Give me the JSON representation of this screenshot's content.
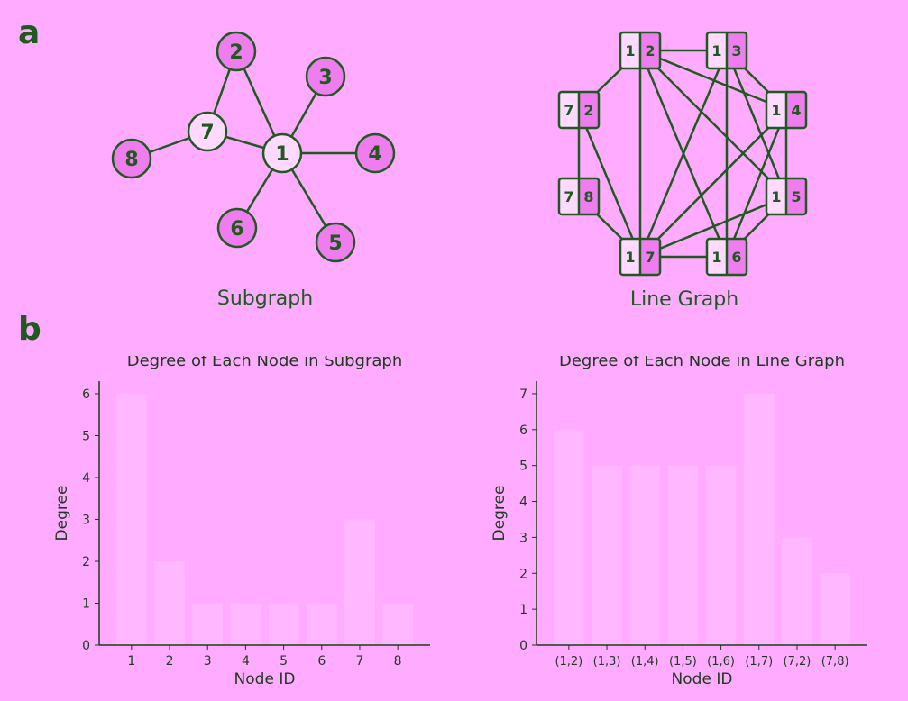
{
  "colors": {
    "background": "#FFABFF",
    "ink": "#1E5A1E",
    "node_fill_dark": "#F07DF0",
    "node_fill_light": "#FFD9FF",
    "bar_fill": "#FFB8FF",
    "axis_text": "#1E3A1E"
  },
  "panel_a": {
    "letter": "a",
    "subgraph": {
      "caption": "Subgraph",
      "nodes": [
        {
          "id": "1",
          "highlight": true
        },
        {
          "id": "2",
          "highlight": false
        },
        {
          "id": "3",
          "highlight": false
        },
        {
          "id": "4",
          "highlight": false
        },
        {
          "id": "5",
          "highlight": false
        },
        {
          "id": "6",
          "highlight": false
        },
        {
          "id": "7",
          "highlight": true
        },
        {
          "id": "8",
          "highlight": false
        }
      ],
      "edges": [
        [
          "1",
          "2"
        ],
        [
          "1",
          "3"
        ],
        [
          "1",
          "4"
        ],
        [
          "1",
          "5"
        ],
        [
          "1",
          "6"
        ],
        [
          "1",
          "7"
        ],
        [
          "2",
          "7"
        ],
        [
          "7",
          "8"
        ]
      ]
    },
    "line_graph": {
      "caption": "Line Graph",
      "nodes": [
        {
          "id": "12",
          "a": "1",
          "b": "2"
        },
        {
          "id": "13",
          "a": "1",
          "b": "3"
        },
        {
          "id": "14",
          "a": "1",
          "b": "4"
        },
        {
          "id": "15",
          "a": "1",
          "b": "5"
        },
        {
          "id": "16",
          "a": "1",
          "b": "6"
        },
        {
          "id": "17",
          "a": "1",
          "b": "7"
        },
        {
          "id": "72",
          "a": "7",
          "b": "2"
        },
        {
          "id": "78",
          "a": "7",
          "b": "8"
        }
      ],
      "edges": [
        [
          "12",
          "13"
        ],
        [
          "12",
          "14"
        ],
        [
          "12",
          "15"
        ],
        [
          "12",
          "16"
        ],
        [
          "12",
          "17"
        ],
        [
          "12",
          "72"
        ],
        [
          "13",
          "14"
        ],
        [
          "13",
          "15"
        ],
        [
          "13",
          "16"
        ],
        [
          "13",
          "17"
        ],
        [
          "14",
          "15"
        ],
        [
          "14",
          "16"
        ],
        [
          "14",
          "17"
        ],
        [
          "15",
          "16"
        ],
        [
          "15",
          "17"
        ],
        [
          "16",
          "17"
        ],
        [
          "17",
          "72"
        ],
        [
          "17",
          "78"
        ],
        [
          "72",
          "78"
        ]
      ]
    }
  },
  "panel_b": {
    "letter": "b"
  },
  "chart_data": [
    {
      "type": "bar",
      "title": "Degree of Each Node in Subgraph",
      "xlabel": "Node ID",
      "ylabel": "Degree",
      "categories": [
        "1",
        "2",
        "3",
        "4",
        "5",
        "6",
        "7",
        "8"
      ],
      "values": [
        6,
        2,
        1,
        1,
        1,
        1,
        3,
        1
      ],
      "ylim": [
        0,
        6.3
      ],
      "yticks": [
        0,
        1,
        2,
        3,
        4,
        5,
        6
      ],
      "grid": false
    },
    {
      "type": "bar",
      "title": "Degree of Each Node in Line Graph",
      "xlabel": "Node ID",
      "ylabel": "Degree",
      "categories": [
        "(1,2)",
        "(1,3)",
        "(1,4)",
        "(1,5)",
        "(1,6)",
        "(1,7)",
        "(7,2)",
        "(7,8)"
      ],
      "values": [
        6,
        5,
        5,
        5,
        5,
        7,
        3,
        2
      ],
      "ylim": [
        0,
        7.35
      ],
      "yticks": [
        0,
        1,
        2,
        3,
        4,
        5,
        6,
        7
      ],
      "grid": false
    }
  ]
}
